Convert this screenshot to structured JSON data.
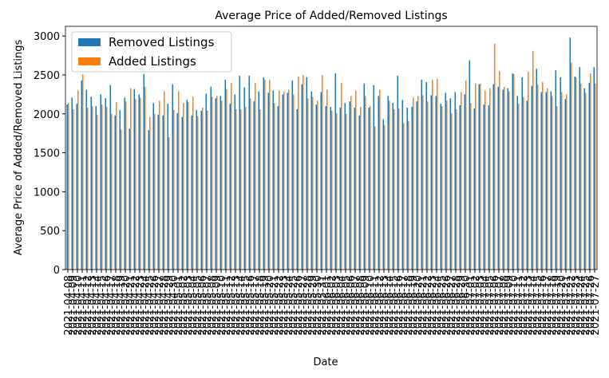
{
  "chart_data": {
    "type": "bar",
    "title": "Average Price of Added/Removed Listings",
    "xlabel": "Date",
    "ylabel": "Average Price of Added/Removed Listings",
    "categories": [
      "2021-04-08",
      "2021-04-09",
      "2021-04-10",
      "2021-04-11",
      "2021-04-12",
      "2021-04-13",
      "2021-04-14",
      "2021-04-15",
      "2021-04-16",
      "2021-04-17",
      "2021-04-18",
      "2021-04-19",
      "2021-04-20",
      "2021-04-21",
      "2021-04-22",
      "2021-04-23",
      "2021-04-24",
      "2021-04-25",
      "2021-04-26",
      "2021-04-27",
      "2021-04-28",
      "2021-04-29",
      "2021-04-30",
      "2021-05-01",
      "2021-05-02",
      "2021-05-03",
      "2021-05-04",
      "2021-05-05",
      "2021-05-06",
      "2021-05-07",
      "2021-05-08",
      "2021-05-09",
      "2021-05-10",
      "2021-05-11",
      "2021-05-12",
      "2021-05-13",
      "2021-05-14",
      "2021-05-15",
      "2021-05-16",
      "2021-05-17",
      "2021-05-18",
      "2021-05-19",
      "2021-05-20",
      "2021-05-21",
      "2021-05-22",
      "2021-05-23",
      "2021-05-24",
      "2021-05-25",
      "2021-05-26",
      "2021-05-27",
      "2021-05-28",
      "2021-05-29",
      "2021-05-30",
      "2021-05-31",
      "2021-06-01",
      "2021-06-02",
      "2021-06-03",
      "2021-06-04",
      "2021-06-05",
      "2021-06-06",
      "2021-06-07",
      "2021-06-08",
      "2021-06-09",
      "2021-06-10",
      "2021-06-11",
      "2021-06-12",
      "2021-06-13",
      "2021-06-14",
      "2021-06-15",
      "2021-06-16",
      "2021-06-17",
      "2021-06-18",
      "2021-06-19",
      "2021-06-20",
      "2021-06-21",
      "2021-06-22",
      "2021-06-23",
      "2021-06-24",
      "2021-06-25",
      "2021-06-26",
      "2021-06-27",
      "2021-06-28",
      "2021-06-29",
      "2021-06-30",
      "2021-07-01",
      "2021-07-02",
      "2021-07-03",
      "2021-07-04",
      "2021-07-05",
      "2021-07-06",
      "2021-07-07",
      "2021-07-08",
      "2021-07-09",
      "2021-07-10",
      "2021-07-11",
      "2021-07-12",
      "2021-07-13",
      "2021-07-14",
      "2021-07-15",
      "2021-07-16",
      "2021-07-17",
      "2021-07-18",
      "2021-07-19",
      "2021-07-20",
      "2021-07-21",
      "2021-07-22",
      "2021-07-23",
      "2021-07-24",
      "2021-07-25",
      "2021-07-26",
      "2021-07-27"
    ],
    "series": [
      {
        "name": "Removed Listings",
        "color": "#1f77b4",
        "values": [
          2120,
          2210,
          2130,
          2430,
          2310,
          2220,
          2100,
          2250,
          2200,
          2370,
          1980,
          2050,
          2210,
          1810,
          2320,
          2250,
          2510,
          1790,
          2140,
          1990,
          1980,
          2130,
          2380,
          2010,
          1960,
          2180,
          1980,
          2050,
          2040,
          2260,
          2350,
          2200,
          2230,
          2440,
          2130,
          2250,
          2490,
          2340,
          2490,
          2160,
          2290,
          2470,
          2270,
          2300,
          2100,
          2250,
          2270,
          2430,
          2060,
          2380,
          2470,
          2290,
          2120,
          2280,
          2100,
          2090,
          2520,
          2080,
          2140,
          2160,
          2080,
          1980,
          2390,
          2080,
          2370,
          2230,
          1930,
          2230,
          2140,
          2490,
          2180,
          2080,
          2090,
          2160,
          2440,
          2410,
          2240,
          2230,
          2130,
          2270,
          2200,
          2280,
          2110,
          2250,
          2690,
          2070,
          2380,
          2120,
          2110,
          2380,
          2350,
          2310,
          2330,
          2520,
          2230,
          2470,
          2170,
          2360,
          2580,
          2280,
          2280,
          2290,
          2560,
          2470,
          2190,
          2980,
          2480,
          2600,
          2330,
          2400,
          2600
        ]
      },
      {
        "name": "Added Listings",
        "color": "#ff7f0e",
        "values": [
          2140,
          2060,
          2300,
          2510,
          2080,
          2100,
          1990,
          2120,
          2090,
          2000,
          2150,
          1800,
          2160,
          2330,
          2190,
          2210,
          2350,
          1960,
          2000,
          2170,
          2290,
          1700,
          2050,
          2290,
          2140,
          2150,
          2220,
          1970,
          2080,
          2040,
          2220,
          2230,
          2170,
          2320,
          2400,
          2060,
          2060,
          2090,
          2200,
          2400,
          2060,
          2440,
          2440,
          2140,
          2300,
          2290,
          2310,
          2250,
          2480,
          2500,
          2200,
          2220,
          2170,
          2500,
          2310,
          2040,
          2010,
          2400,
          2000,
          2230,
          2300,
          2090,
          2230,
          2100,
          1840,
          2310,
          1860,
          2170,
          2060,
          2070,
          1880,
          1910,
          2210,
          2230,
          2240,
          2160,
          2440,
          2450,
          2100,
          2170,
          2010,
          2060,
          2280,
          2430,
          2140,
          2390,
          2390,
          2300,
          2330,
          2900,
          2550,
          2350,
          2290,
          2510,
          2130,
          2220,
          2540,
          2810,
          2380,
          2410,
          2330,
          2230,
          2100,
          2280,
          2250,
          2660,
          2470,
          2390,
          2270,
          2520,
          2390
        ]
      }
    ],
    "ylim": [
      0,
      3125
    ],
    "yticks": [
      0,
      500,
      1000,
      1500,
      2000,
      2500,
      3000
    ],
    "legend": "upper left"
  }
}
